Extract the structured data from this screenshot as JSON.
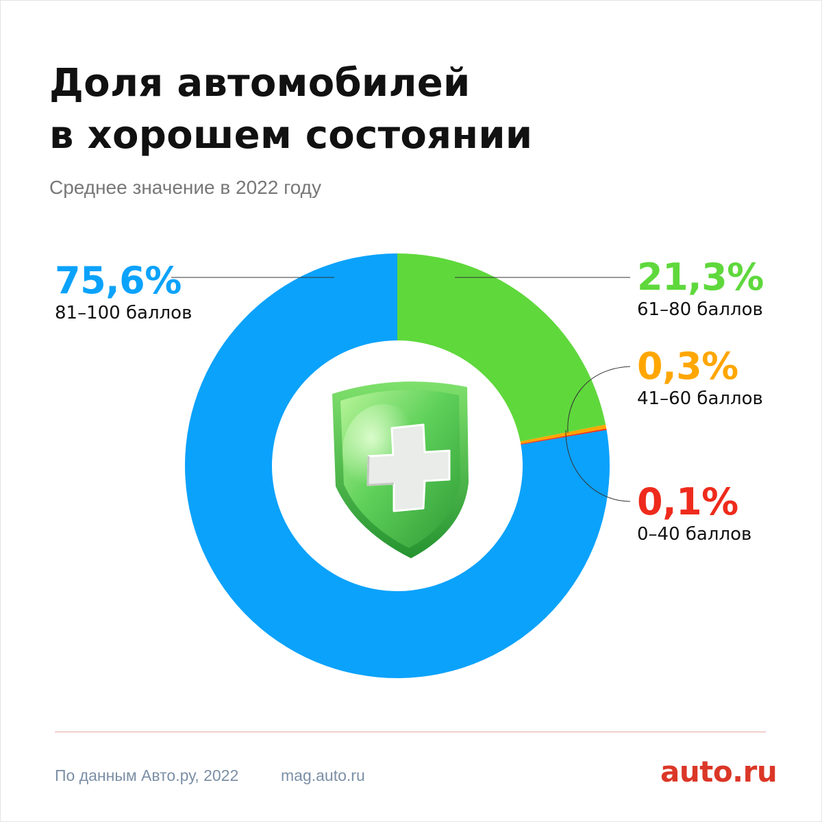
{
  "header": {
    "title_line1": "Доля автомобилей",
    "title_line2": "в хорошем состоянии",
    "subtitle": "Среднее значение в 2022 году"
  },
  "colors": {
    "blue": "#0ba2fb",
    "green": "#5fd83c",
    "orange": "#ffa600",
    "red": "#ee2b1c"
  },
  "chart_data": {
    "type": "pie",
    "style": "donut",
    "title": "Доля автомобилей в хорошем состоянии",
    "subtitle": "Среднее значение в 2022 году",
    "center_icon": "shield-plus-icon",
    "slices": [
      {
        "label": "0–40 баллов",
        "value": 0.1,
        "value_label": "0,1%",
        "color": "#ee2b1c"
      },
      {
        "label": "41–60 баллов",
        "value": 0.3,
        "value_label": "0,3%",
        "color": "#ffa600"
      },
      {
        "label": "61–80 баллов",
        "value": 21.3,
        "value_label": "21,3%",
        "color": "#5fd83c"
      },
      {
        "label": "81–100 баллов",
        "value": 75.6,
        "value_label": "75,6%",
        "color": "#0ba2fb"
      }
    ]
  },
  "footer": {
    "source": "По данным Авто.ру, 2022",
    "site": "mag.auto.ru",
    "logo": "auto.ru"
  }
}
